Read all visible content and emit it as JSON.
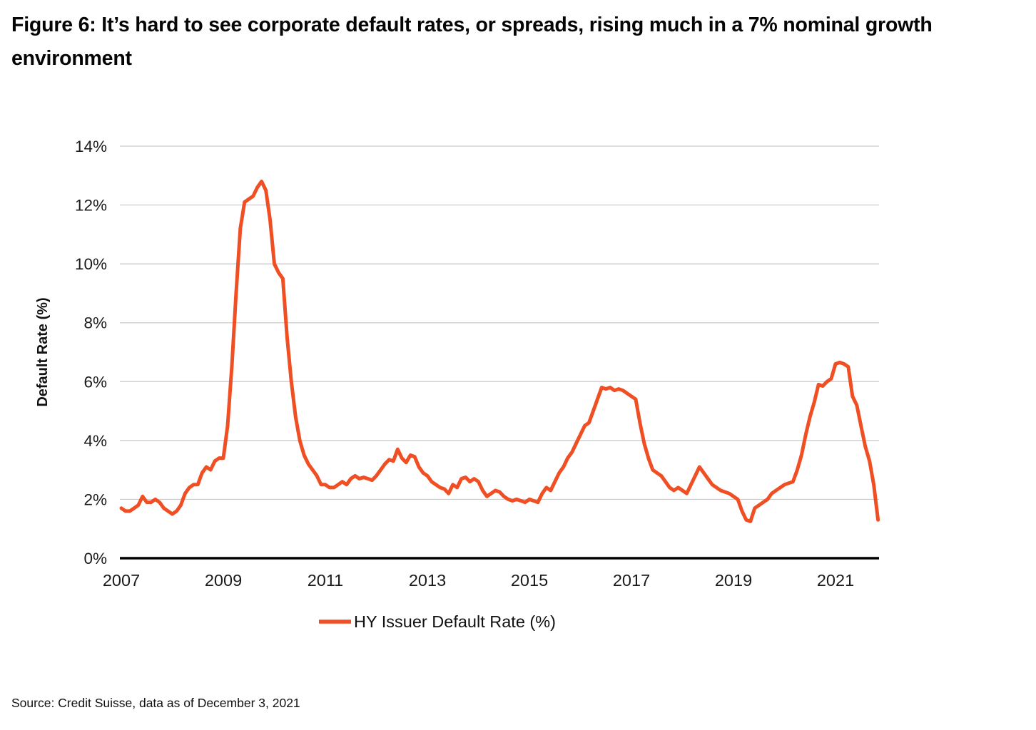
{
  "figure": {
    "title": "Figure 6: It’s hard to see corporate default rates, or spreads, rising much in a 7% nominal growth environment",
    "source": "Source: Credit Suisse, data as of December 3, 2021"
  },
  "chart_data": {
    "type": "line",
    "title": "Figure 6: It’s hard to see corporate default rates, or spreads, rising much in a 7% nominal growth environment",
    "xlabel": "",
    "ylabel": "Default Rate (%)",
    "ylim": [
      0,
      14
    ],
    "xlim": [
      2007,
      2021.92
    ],
    "yticks": [
      "0%",
      "2%",
      "4%",
      "6%",
      "8%",
      "10%",
      "12%",
      "14%"
    ],
    "ytick_values": [
      0,
      2,
      4,
      6,
      8,
      10,
      12,
      14
    ],
    "xticks": [
      "2007",
      "2009",
      "2011",
      "2013",
      "2015",
      "2017",
      "2019",
      "2021"
    ],
    "xtick_values": [
      2007,
      2009,
      2011,
      2013,
      2015,
      2017,
      2019,
      2021
    ],
    "grid": "horizontal",
    "legend_position": "bottom-center",
    "series": [
      {
        "name": "HY Issuer Default Rate (%)",
        "color": "#F04E23",
        "x_start_year": 2007,
        "x_step_years": 0.0833333,
        "frequency": "monthly",
        "values": [
          1.7,
          1.6,
          1.6,
          1.7,
          1.8,
          2.1,
          1.9,
          1.9,
          2.0,
          1.9,
          1.7,
          1.6,
          1.5,
          1.6,
          1.8,
          2.2,
          2.4,
          2.5,
          2.5,
          2.9,
          3.1,
          3.0,
          3.3,
          3.4,
          3.4,
          4.5,
          6.5,
          9.0,
          11.2,
          12.1,
          12.2,
          12.3,
          12.6,
          12.8,
          12.5,
          11.5,
          10.0,
          9.7,
          9.5,
          7.5,
          6.0,
          4.8,
          4.0,
          3.5,
          3.2,
          3.0,
          2.8,
          2.5,
          2.5,
          2.4,
          2.4,
          2.5,
          2.6,
          2.5,
          2.7,
          2.8,
          2.7,
          2.75,
          2.7,
          2.65,
          2.8,
          3.0,
          3.2,
          3.35,
          3.3,
          3.7,
          3.4,
          3.25,
          3.5,
          3.45,
          3.1,
          2.9,
          2.8,
          2.6,
          2.5,
          2.4,
          2.35,
          2.2,
          2.5,
          2.4,
          2.7,
          2.75,
          2.6,
          2.7,
          2.6,
          2.3,
          2.1,
          2.2,
          2.3,
          2.25,
          2.1,
          2.0,
          1.95,
          2.0,
          1.95,
          1.9,
          2.0,
          1.95,
          1.9,
          2.2,
          2.4,
          2.3,
          2.6,
          2.9,
          3.1,
          3.4,
          3.6,
          3.9,
          4.2,
          4.5,
          4.6,
          5.0,
          5.4,
          5.8,
          5.75,
          5.8,
          5.7,
          5.75,
          5.7,
          5.6,
          5.5,
          5.4,
          4.6,
          3.9,
          3.4,
          3.0,
          2.9,
          2.8,
          2.6,
          2.4,
          2.3,
          2.4,
          2.3,
          2.2,
          2.5,
          2.8,
          3.1,
          2.9,
          2.7,
          2.5,
          2.4,
          2.3,
          2.25,
          2.2,
          2.1,
          2.0,
          1.6,
          1.3,
          1.25,
          1.7,
          1.8,
          1.9,
          2.0,
          2.2,
          2.3,
          2.4,
          2.5,
          2.55,
          2.6,
          3.0,
          3.5,
          4.2,
          4.8,
          5.3,
          5.9,
          5.85,
          6.0,
          6.1,
          6.6,
          6.65,
          6.6,
          6.5,
          5.5,
          5.2,
          4.5,
          3.8,
          3.3,
          2.5,
          1.3
        ]
      }
    ]
  }
}
